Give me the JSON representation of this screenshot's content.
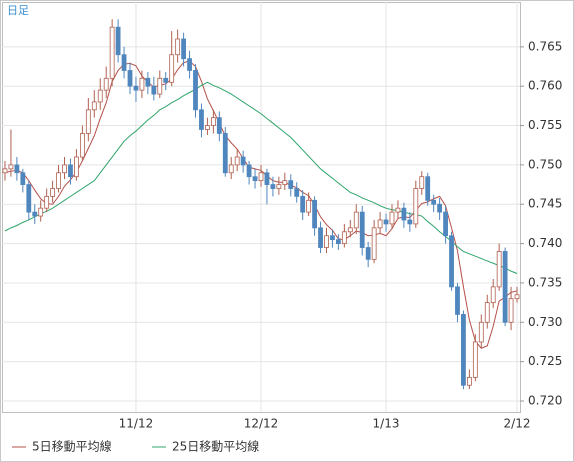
{
  "chart_data": {
    "type": "candlestick",
    "title": "日足",
    "categories": [
      null,
      null,
      null,
      null,
      null,
      null,
      null,
      null,
      null,
      null,
      null,
      null,
      null,
      null,
      null,
      null,
      null,
      null,
      null,
      null,
      null,
      null,
      "11/12",
      null,
      null,
      null,
      null,
      null,
      null,
      null,
      null,
      null,
      null,
      null,
      null,
      null,
      null,
      null,
      null,
      null,
      null,
      null,
      null,
      "12/12",
      null,
      null,
      null,
      null,
      null,
      null,
      null,
      null,
      null,
      null,
      null,
      null,
      null,
      null,
      null,
      null,
      null,
      null,
      null,
      null,
      "1/13",
      null,
      null,
      null,
      null,
      null,
      null,
      null,
      null,
      null,
      null,
      null,
      null,
      null,
      null,
      null,
      null,
      null,
      null,
      null,
      null,
      null,
      "2/12"
    ],
    "open": [
      0.749,
      0.7495,
      0.75,
      0.749,
      0.7475,
      0.744,
      0.7435,
      0.7445,
      0.746,
      0.747,
      0.749,
      0.75,
      0.7485,
      0.751,
      0.754,
      0.757,
      0.758,
      0.7595,
      0.761,
      0.7675,
      0.764,
      0.762,
      0.76,
      0.7595,
      0.761,
      0.76,
      0.759,
      0.761,
      0.7605,
      0.764,
      0.766,
      0.7635,
      0.762,
      0.757,
      0.7545,
      0.755,
      0.756,
      0.754,
      0.749,
      0.75,
      0.751,
      0.75,
      0.7485,
      0.748,
      0.749,
      0.7475,
      0.747,
      0.7475,
      0.748,
      0.747,
      0.746,
      0.744,
      0.7455,
      0.742,
      0.7395,
      0.741,
      0.7405,
      0.74,
      0.7415,
      0.742,
      0.744,
      0.7395,
      0.738,
      0.742,
      0.743,
      0.7425,
      0.744,
      0.7445,
      0.743,
      0.7425,
      0.747,
      0.7485,
      0.7455,
      0.745,
      0.744,
      0.741,
      0.7345,
      0.731,
      0.722,
      0.723,
      0.7275,
      0.73,
      0.7325,
      0.7345,
      0.739,
      0.73,
      0.733
    ],
    "high": [
      0.7505,
      0.7545,
      0.751,
      0.7495,
      0.748,
      0.745,
      0.7455,
      0.747,
      0.748,
      0.75,
      0.751,
      0.7508,
      0.752,
      0.755,
      0.7585,
      0.7595,
      0.761,
      0.7625,
      0.7685,
      0.7685,
      0.765,
      0.763,
      0.7612,
      0.762,
      0.7618,
      0.7612,
      0.762,
      0.7618,
      0.767,
      0.7672,
      0.7668,
      0.7645,
      0.7628,
      0.7578,
      0.756,
      0.757,
      0.7568,
      0.7548,
      0.751,
      0.752,
      0.7518,
      0.7505,
      0.7495,
      0.75,
      0.7495,
      0.7485,
      0.7485,
      0.749,
      0.7488,
      0.7478,
      0.7468,
      0.7465,
      0.746,
      0.7428,
      0.742,
      0.7418,
      0.7412,
      0.7425,
      0.743,
      0.745,
      0.7448,
      0.7402,
      0.743,
      0.744,
      0.7438,
      0.745,
      0.7455,
      0.7452,
      0.744,
      0.748,
      0.7492,
      0.749,
      0.7462,
      0.7458,
      0.7448,
      0.7415,
      0.735,
      0.7315,
      0.724,
      0.7285,
      0.731,
      0.7335,
      0.7355,
      0.74,
      0.7395,
      0.7345,
      0.7345
    ],
    "low": [
      0.748,
      0.7485,
      0.748,
      0.7465,
      0.743,
      0.7425,
      0.7428,
      0.744,
      0.7452,
      0.7465,
      0.7482,
      0.7475,
      0.748,
      0.7505,
      0.753,
      0.756,
      0.757,
      0.7585,
      0.76,
      0.763,
      0.761,
      0.759,
      0.758,
      0.7585,
      0.759,
      0.7582,
      0.7585,
      0.7595,
      0.76,
      0.763,
      0.7625,
      0.761,
      0.756,
      0.7535,
      0.7538,
      0.754,
      0.753,
      0.7485,
      0.7482,
      0.7492,
      0.749,
      0.7475,
      0.747,
      0.7472,
      0.745,
      0.746,
      0.7462,
      0.7468,
      0.746,
      0.7452,
      0.743,
      0.7435,
      0.741,
      0.7388,
      0.7388,
      0.7395,
      0.7392,
      0.7395,
      0.7408,
      0.7412,
      0.7385,
      0.737,
      0.7375,
      0.7412,
      0.7415,
      0.7418,
      0.7432,
      0.742,
      0.7415,
      0.742,
      0.7462,
      0.7448,
      0.744,
      0.743,
      0.74,
      0.734,
      0.73,
      0.7215,
      0.7215,
      0.7225,
      0.7268,
      0.7292,
      0.7318,
      0.734,
      0.7295,
      0.729,
      0.7325
    ],
    "close": [
      0.7495,
      0.75,
      0.749,
      0.7475,
      0.744,
      0.7435,
      0.7445,
      0.746,
      0.747,
      0.749,
      0.75,
      0.7485,
      0.751,
      0.754,
      0.757,
      0.758,
      0.7595,
      0.761,
      0.7675,
      0.764,
      0.762,
      0.76,
      0.7595,
      0.761,
      0.76,
      0.759,
      0.761,
      0.7605,
      0.764,
      0.766,
      0.7635,
      0.762,
      0.757,
      0.7545,
      0.755,
      0.756,
      0.754,
      0.749,
      0.75,
      0.751,
      0.75,
      0.7485,
      0.748,
      0.749,
      0.7475,
      0.747,
      0.7475,
      0.748,
      0.747,
      0.746,
      0.744,
      0.7455,
      0.742,
      0.7395,
      0.741,
      0.7405,
      0.74,
      0.7415,
      0.742,
      0.744,
      0.7395,
      0.738,
      0.742,
      0.743,
      0.7425,
      0.744,
      0.7445,
      0.743,
      0.7425,
      0.747,
      0.7485,
      0.7455,
      0.745,
      0.744,
      0.741,
      0.7345,
      0.731,
      0.722,
      0.723,
      0.7275,
      0.73,
      0.7325,
      0.7345,
      0.739,
      0.73,
      0.733,
      0.7335
    ],
    "up_color": "#b0604f",
    "down_color": "#4f86bd",
    "series": [
      {
        "name": "5日移動平均線",
        "color": "#b5504a",
        "values": [
          0.749,
          0.7492,
          0.7493,
          0.749,
          0.748,
          0.7468,
          0.7457,
          0.7451,
          0.745,
          0.746,
          0.7473,
          0.7481,
          0.7491,
          0.7505,
          0.7521,
          0.7537,
          0.7559,
          0.7579,
          0.7606,
          0.762,
          0.7628,
          0.7629,
          0.7626,
          0.7613,
          0.7605,
          0.7599,
          0.7601,
          0.7603,
          0.7609,
          0.7621,
          0.763,
          0.7632,
          0.7625,
          0.7606,
          0.7584,
          0.7569,
          0.7553,
          0.7537,
          0.7528,
          0.752,
          0.7508,
          0.7497,
          0.7495,
          0.7493,
          0.7486,
          0.748,
          0.7478,
          0.7478,
          0.7474,
          0.7471,
          0.7465,
          0.7461,
          0.7449,
          0.7434,
          0.7424,
          0.7417,
          0.7406,
          0.7405,
          0.741,
          0.7416,
          0.7414,
          0.741,
          0.7411,
          0.7413,
          0.741,
          0.7419,
          0.7432,
          0.7434,
          0.7433,
          0.7442,
          0.7451,
          0.7453,
          0.7457,
          0.746,
          0.7448,
          0.742,
          0.7391,
          0.7345,
          0.7303,
          0.7276,
          0.7267,
          0.727,
          0.7295,
          0.7327,
          0.7332,
          0.7338,
          0.734
        ]
      },
      {
        "name": "25日移動平均線",
        "color": "#2ea56a",
        "values": [
          0.7416,
          0.742,
          0.7423,
          0.7427,
          0.743,
          0.7434,
          0.7438,
          0.7441,
          0.7445,
          0.745,
          0.7455,
          0.746,
          0.7465,
          0.747,
          0.7475,
          0.748,
          0.749,
          0.75,
          0.751,
          0.752,
          0.753,
          0.7537,
          0.7543,
          0.755,
          0.7557,
          0.7563,
          0.757,
          0.7574,
          0.7579,
          0.7583,
          0.7588,
          0.7592,
          0.7596,
          0.7601,
          0.7605,
          0.7601,
          0.7598,
          0.7594,
          0.759,
          0.7585,
          0.758,
          0.7575,
          0.757,
          0.7565,
          0.7559,
          0.7553,
          0.7547,
          0.7541,
          0.7535,
          0.7527,
          0.7519,
          0.7511,
          0.7503,
          0.7495,
          0.7489,
          0.7483,
          0.7477,
          0.7471,
          0.7465,
          0.7462,
          0.7458,
          0.7455,
          0.7452,
          0.7448,
          0.7445,
          0.7443,
          0.7442,
          0.744,
          0.7438,
          0.7437,
          0.7435,
          0.7428,
          0.7422,
          0.7415,
          0.7409,
          0.7403,
          0.7396,
          0.739,
          0.7387,
          0.7384,
          0.7381,
          0.7378,
          0.7375,
          0.7372,
          0.7369,
          0.7365,
          0.7362
        ]
      }
    ],
    "ylim": [
      0.7186,
      0.7707
    ],
    "yticks": [
      {
        "value": 0.72,
        "label": "0.720"
      },
      0.725,
      {
        "value": 0.73,
        "label": "0.730"
      },
      0.735,
      {
        "value": 0.74,
        "label": "0.740"
      },
      0.745,
      {
        "value": 0.75,
        "label": "0.750"
      },
      0.755,
      {
        "value": 0.76,
        "label": "0.760"
      },
      0.765
    ],
    "grid": true
  }
}
